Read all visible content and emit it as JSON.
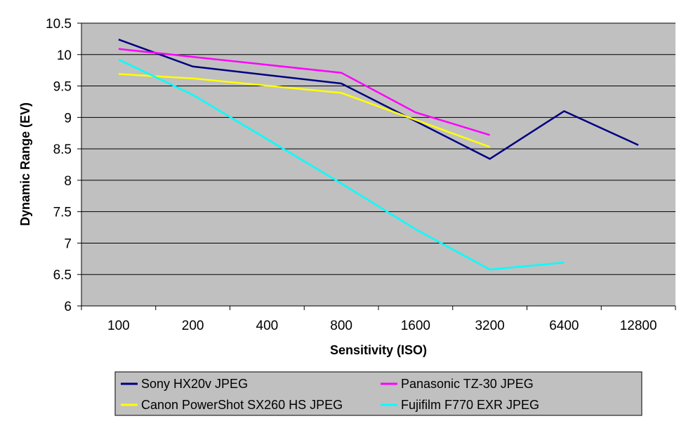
{
  "chart_data": {
    "type": "line",
    "title": "",
    "xlabel": "Sensitivity (ISO)",
    "ylabel": "Dynamic Range (EV)",
    "categories": [
      "100",
      "200",
      "400",
      "800",
      "1600",
      "3200",
      "6400",
      "12800"
    ],
    "ylim": [
      6,
      10.5
    ],
    "yticks": [
      "6",
      "6.5",
      "7",
      "7.5",
      "8",
      "8.5",
      "9",
      "9.5",
      "10",
      "10.5"
    ],
    "grid": true,
    "legend": "bottom",
    "series": [
      {
        "name": "Sony HX20v JPEG",
        "color": "#000080",
        "values": [
          10.24,
          9.81,
          null,
          9.54,
          null,
          8.34,
          9.1,
          8.56
        ]
      },
      {
        "name": "Panasonic TZ-30 JPEG",
        "color": "#FF00FF",
        "values": [
          10.09,
          null,
          null,
          9.71,
          9.08,
          8.72,
          null,
          null
        ]
      },
      {
        "name": "Canon PowerShot SX260 HS JPEG",
        "color": "#FFFF00",
        "values": [
          9.69,
          9.62,
          null,
          9.39,
          null,
          8.53,
          null,
          null
        ]
      },
      {
        "name": "Fujifilm F770 EXR JPEG",
        "color": "#00FFFF",
        "values": [
          9.92,
          9.36,
          null,
          7.95,
          7.22,
          6.58,
          6.69,
          null
        ]
      }
    ]
  }
}
